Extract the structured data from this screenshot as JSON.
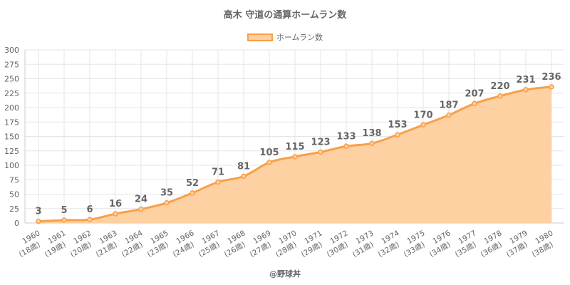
{
  "title": "高木 守道の通算ホームラン数",
  "legend": {
    "label": "ホームラン数"
  },
  "credit": "@野球丼",
  "colors": {
    "line": "#f7a04a",
    "fill": "#fecf9d",
    "grid": "#e5e5e5",
    "text": "#666666"
  },
  "chart_data": {
    "type": "area",
    "title": "高木 守道の通算ホームラン数",
    "x": [
      "1960",
      "1961",
      "1962",
      "1963",
      "1964",
      "1965",
      "1966",
      "1967",
      "1968",
      "1969",
      "1970",
      "1971",
      "1972",
      "1973",
      "1974",
      "1975",
      "1976",
      "1977",
      "1978",
      "1979",
      "1980"
    ],
    "x_sublabels": [
      "(18歳)",
      "(19歳)",
      "(20歳)",
      "(21歳)",
      "(22歳)",
      "(23歳)",
      "(24歳)",
      "(25歳)",
      "(26歳)",
      "(27歳)",
      "(28歳)",
      "(29歳)",
      "(30歳)",
      "(31歳)",
      "(32歳)",
      "(33歳)",
      "(34歳)",
      "(35歳)",
      "(36歳)",
      "(37歳)",
      "(38歳)"
    ],
    "series": [
      {
        "name": "ホームラン数",
        "values": [
          3,
          5,
          6,
          16,
          24,
          35,
          52,
          71,
          81,
          105,
          115,
          123,
          133,
          138,
          153,
          170,
          187,
          207,
          220,
          231,
          236
        ]
      }
    ],
    "ylim": [
      0,
      300
    ],
    "yticks": [
      0,
      25,
      50,
      75,
      100,
      125,
      150,
      175,
      200,
      225,
      250,
      275,
      300
    ],
    "grid": true,
    "legend_position": "top",
    "data_labels": true
  }
}
